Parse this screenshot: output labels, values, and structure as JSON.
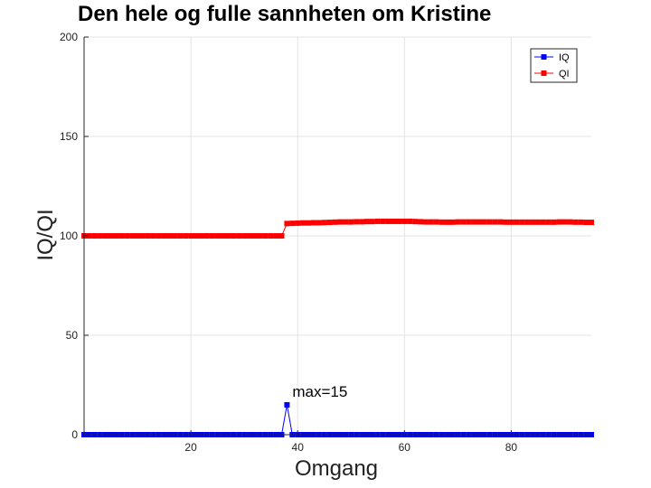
{
  "chart_data": {
    "type": "line",
    "title": "Den hele og fulle sannheten om Kristine",
    "xlabel": "Omgang",
    "ylabel": "IQ/QI",
    "xlim": [
      0,
      95
    ],
    "ylim": [
      0,
      200
    ],
    "xticks": [
      20,
      40,
      60,
      80
    ],
    "yticks": [
      0,
      50,
      100,
      150,
      200
    ],
    "grid": true,
    "legend_position": "top-right",
    "x": [
      0,
      1,
      2,
      3,
      4,
      5,
      6,
      7,
      8,
      9,
      10,
      11,
      12,
      13,
      14,
      15,
      16,
      17,
      18,
      19,
      20,
      21,
      22,
      23,
      24,
      25,
      26,
      27,
      28,
      29,
      30,
      31,
      32,
      33,
      34,
      35,
      36,
      37,
      38,
      39,
      40,
      41,
      42,
      43,
      44,
      45,
      46,
      47,
      48,
      49,
      50,
      51,
      52,
      53,
      54,
      55,
      56,
      57,
      58,
      59,
      60,
      61,
      62,
      63,
      64,
      65,
      66,
      67,
      68,
      69,
      70,
      71,
      72,
      73,
      74,
      75,
      76,
      77,
      78,
      79,
      80,
      81,
      82,
      83,
      84,
      85,
      86,
      87,
      88,
      89,
      90,
      91,
      92,
      93,
      94,
      95
    ],
    "series": [
      {
        "name": "IQ",
        "color": "#0000ff",
        "values": [
          0,
          0,
          0,
          0,
          0,
          0,
          0,
          0,
          0,
          0,
          0,
          0,
          0,
          0,
          0,
          0,
          0,
          0,
          0,
          0,
          0,
          0,
          0,
          0,
          0,
          0,
          0,
          0,
          0,
          0,
          0,
          0,
          0,
          0,
          0,
          0,
          0,
          0,
          15,
          0,
          0,
          0,
          0,
          0,
          0,
          0,
          0,
          0,
          0,
          0,
          0,
          0,
          0,
          0,
          0,
          0,
          0,
          0,
          0,
          0,
          0,
          0,
          0,
          0,
          0,
          0,
          0,
          0,
          0,
          0,
          0,
          0,
          0,
          0,
          0,
          0,
          0,
          0,
          0,
          0,
          0,
          0,
          0,
          0,
          0,
          0,
          0,
          0,
          0,
          0,
          0,
          0,
          0,
          0,
          0,
          0
        ]
      },
      {
        "name": "QI",
        "color": "#ff0000",
        "values": [
          100,
          100,
          100,
          100,
          100,
          100,
          100,
          100,
          100,
          100,
          100,
          100,
          100,
          100,
          100,
          100,
          100,
          100,
          100,
          100,
          100,
          100,
          100,
          100,
          100,
          100,
          100,
          100,
          100,
          100,
          100,
          100,
          100,
          100,
          100,
          100,
          100,
          100,
          106.2,
          106.3,
          106.4,
          106.5,
          106.5,
          106.6,
          106.6,
          106.7,
          106.8,
          106.9,
          107,
          107,
          107,
          107.1,
          107.1,
          107.2,
          107.2,
          107.3,
          107.3,
          107.3,
          107.3,
          107.3,
          107.3,
          107.3,
          107.2,
          107.1,
          107,
          107,
          107,
          106.9,
          106.9,
          106.9,
          107,
          107,
          107,
          107,
          107,
          107,
          107,
          107,
          107,
          106.9,
          106.9,
          106.9,
          106.9,
          106.9,
          106.9,
          106.9,
          106.9,
          106.9,
          106.9,
          107,
          107,
          107,
          106.9,
          106.9,
          106.8,
          106.8
        ]
      }
    ],
    "annotations": [
      {
        "text": "max=15",
        "x": 38,
        "y": 15
      }
    ]
  }
}
